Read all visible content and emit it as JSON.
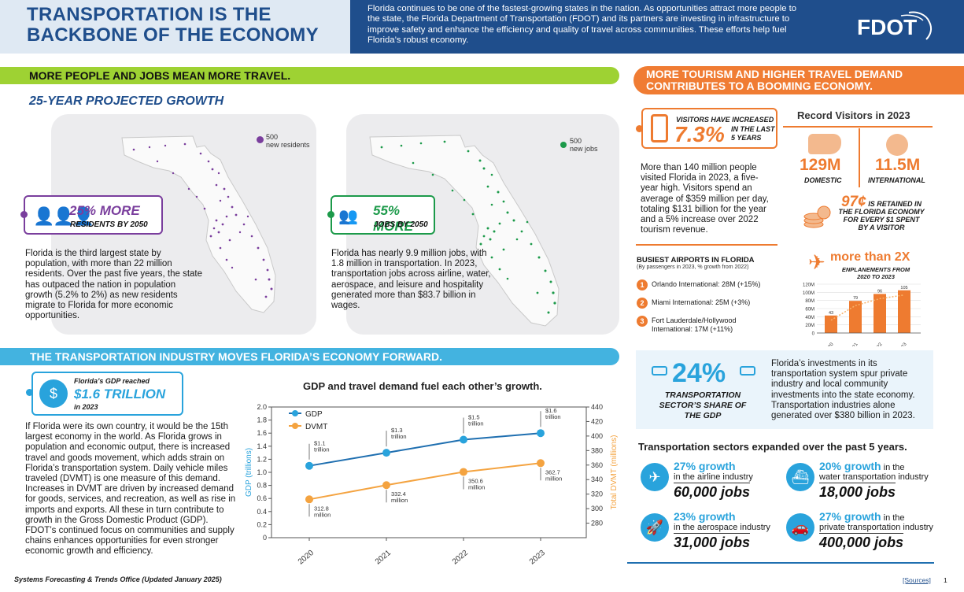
{
  "header": {
    "title_line1": "TRANSPORTATION IS THE",
    "title_line2": "BACKBONE OF THE ECONOMY",
    "intro": "Florida continues to be one of the fastest-growing states in the nation. As opportunities attract more people to the state, the Florida Department of Transportation (FDOT) and its partners are investing in infrastructure to improve safety and enhance the efficiency and quality of travel across communities. These efforts help fuel Florida’s robust economy.",
    "logo_text": "FDOT"
  },
  "growth": {
    "banner": "MORE PEOPLE AND JOBS MEAN MORE TRAVEL.",
    "subtitle": "25-YEAR PROJECTED GROWTH",
    "residents": {
      "legend_num": "500",
      "legend_label": "new residents",
      "pct": "25% MORE",
      "sub": "RESIDENTS BY 2050",
      "text": "Florida is the third largest state by population, with more than 22 million residents. Over the past five years, the state has outpaced the nation in population growth (5.2% to 2%) as new residents migrate to Florida for more economic opportunities."
    },
    "jobs": {
      "legend_num": "500",
      "legend_label": "new jobs",
      "pct": "55% MORE",
      "sub": "JOBS BY 2050",
      "text": "Florida has nearly 9.9 million jobs, with 1.8 million in transportation. In 2023, transportation jobs across airline, water, aerospace, and leisure and hospitality generated more than $83.7 billion in wages."
    }
  },
  "economy": {
    "banner": "THE TRANSPORTATION INDUSTRY MOVES FLORIDA’S ECONOMY FORWARD.",
    "gdp_label": "Florida’s GDP reached",
    "gdp_value": "$1.6 TRILLION",
    "gdp_year": "in 2023",
    "text": "If Florida were its own country, it would be the 15th largest economy in the world. As Florida grows in population and economic output, there is increased travel and goods movement, which adds strain on Florida’s transportation system. Daily vehicle miles traveled (DVMT) is one measure of this demand. Increases in DVMT are driven by increased demand for goods, services, and recreation, as well as rise in imports and exports. All these in turn contribute to growth in the Gross Domestic Product (GDP). FDOT’s continued focus on communities and supply chains enhances opportunities for even stronger economic growth and efficiency."
  },
  "chart_data": [
    {
      "type": "line",
      "title": "GDP and travel demand fuel each other’s growth.",
      "x": [
        "2020",
        "2021",
        "2022",
        "2023"
      ],
      "ylabel": "GDP (trillions)",
      "ylabel2": "Total DVMT (millions)",
      "ylim": [
        0,
        2.0
      ],
      "ylim2": [
        260,
        440
      ],
      "yticks": [
        "0",
        "0.2",
        "0.4",
        "0.6",
        "0.8",
        "1.0",
        "1.2",
        "1.4",
        "1.6",
        "1.8",
        "2.0"
      ],
      "yticks2": [
        "280",
        "300",
        "320",
        "340",
        "360",
        "380",
        "400",
        "420",
        "440"
      ],
      "series": [
        {
          "name": "GDP",
          "axis": "left",
          "color": "#1f6fb0",
          "values": [
            1.1,
            1.3,
            1.5,
            1.6
          ],
          "labels": [
            "$1.1 trillion",
            "$1.3 trillion",
            "$1.5 trillion",
            "$1.6 trillion"
          ]
        },
        {
          "name": "DVMT",
          "axis": "right",
          "color": "#f4a340",
          "values": [
            312.8,
            332.4,
            350.6,
            362.7
          ],
          "labels": [
            "312.8 million",
            "332.4 million",
            "350.6 million",
            "362.7 million"
          ]
        }
      ]
    },
    {
      "type": "bar",
      "title": "ENPLANEMENTS FROM 2020 TO 2023",
      "categories": [
        "2020",
        "2021",
        "2022",
        "2023"
      ],
      "values": [
        43,
        79,
        96,
        105
      ],
      "ylim": [
        0,
        120
      ],
      "yticks": [
        "0",
        "20M",
        "40M",
        "60M",
        "80M",
        "100M",
        "120M"
      ]
    }
  ],
  "tourism": {
    "banner_line1": "MORE TOURISM AND HIGHER TRAVEL DEMAND",
    "banner_line2": "CONTRIBUTES TO A BOOMING ECONOMY.",
    "visitors_label": "VISITORS HAVE INCREASED",
    "visitors_pct": "7.3%",
    "visitors_period1": "IN THE LAST",
    "visitors_period2": "5 YEARS",
    "text": "More than 140 million people visited Florida in 2023, a five-year high. Visitors spend an average of $359 million per day, totaling $131 billion for the year and a 5% increase over 2022 tourism revenue.",
    "record_title": "Record Visitors in 2023",
    "domestic_value": "129M",
    "domestic_label": "DOMESTIC",
    "intl_value": "11.5M",
    "intl_label": "INTERNATIONAL",
    "retained_value": "97¢",
    "retained_text1": "IS RETAINED IN",
    "retained_text2": "THE FLORIDA ECONOMY",
    "retained_text3": "FOR EVERY $1 SPENT",
    "retained_text4": "BY A VISITOR",
    "airports_title": "BUSIEST AIRPORTS IN FLORIDA",
    "airports_sub": "(By passengers in 2023, % growth from 2022)",
    "airports": [
      {
        "rank": "1",
        "name": "Orlando International: 28M (+15%)"
      },
      {
        "rank": "2",
        "name": "Miami International: 25M (+3%)"
      },
      {
        "rank": "3",
        "name": "Fort Lauderdale/Hollywood International: 17M (+11%)"
      }
    ],
    "enplane_value": "more than 2X",
    "enplane_label1": "ENPLANEMENTS FROM",
    "enplane_label2": "2020 TO 2023"
  },
  "share": {
    "pct": "24%",
    "label1": "TRANSPORTATION",
    "label2": "SECTOR’S SHARE OF",
    "label3": "THE GDP",
    "text": "Florida’s investments in its transportation system spur private industry and local community investments into the state economy. Transportation industries alone generated over $380 billion in 2023."
  },
  "sectors": {
    "title": "Transportation sectors expanded over the past 5 years.",
    "items": [
      {
        "growth": "27% growth",
        "pre": "",
        "industry": "in the airline industry",
        "jobs": "60,000 jobs",
        "icon": "airplane-icon"
      },
      {
        "growth": "20% growth",
        "pre": " in the",
        "industry": "water transportation industry",
        "jobs": "18,000 jobs",
        "icon": "ship-icon"
      },
      {
        "growth": "23% growth",
        "pre": "",
        "industry": "in the aerospace industry",
        "jobs": "31,000 jobs",
        "icon": "rocket-icon"
      },
      {
        "growth": "27% growth",
        "pre": " in the",
        "industry": "private transportation industry",
        "jobs": "400,000 jobs",
        "icon": "car-icon"
      }
    ]
  },
  "footer": {
    "office": "Systems Forecasting & Trends Office (Updated January 2025)",
    "sources": "[Sources]",
    "page": "1"
  },
  "colors": {
    "navy": "#1f4e8c",
    "green": "#9ed233",
    "blue": "#43b3e0",
    "orange": "#f07c33",
    "purple": "#7a3e9d",
    "jobgreen": "#1c9a4a"
  }
}
